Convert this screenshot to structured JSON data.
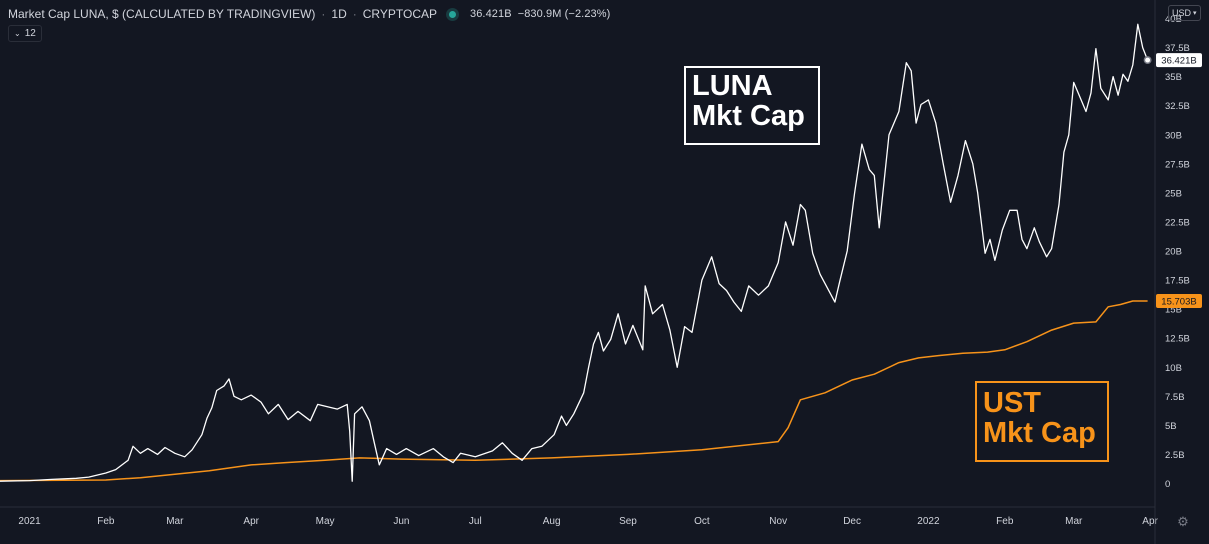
{
  "legend": {
    "symbol": "Market Cap LUNA, $ (CALCULATED BY TRADINGVIEW)",
    "interval": "1D",
    "exchange": "CRYPTOCAP",
    "last_value": "36.421B",
    "change": "−830.9M (−2.23%)",
    "collapse_count": "12"
  },
  "currency": "USD",
  "annotations": {
    "luna_line1": "LUNA",
    "luna_line2": "Mkt Cap",
    "ust_line1": "UST",
    "ust_line2": "Mkt Cap"
  },
  "colors": {
    "background": "#131722",
    "luna_line": "#ffffff",
    "ust_line": "#f7931a",
    "axis_text": "#d1d4dc"
  },
  "chart_data": {
    "type": "line",
    "title": "Market Cap LUNA, $ (CALCULATED BY TRADINGVIEW)",
    "x_ticks": [
      "2021",
      "Feb",
      "Mar",
      "Apr",
      "May",
      "Jun",
      "Jul",
      "Aug",
      "Sep",
      "Oct",
      "Nov",
      "Dec",
      "2022",
      "Feb",
      "Mar",
      "Apr"
    ],
    "y_ticks": [
      0,
      2.5,
      5,
      7.5,
      10,
      12.5,
      15,
      17.5,
      20,
      22.5,
      25,
      27.5,
      30,
      32.5,
      35,
      37.5,
      40
    ],
    "y_tick_labels": [
      "0",
      "2.5B",
      "5B",
      "7.5B",
      "10B",
      "12.5B",
      "15B",
      "17.5B",
      "20B",
      "22.5B",
      "25B",
      "27.5B",
      "30B",
      "32.5B",
      "35B",
      "37.5B",
      "40B"
    ],
    "ylim": [
      0,
      40
    ],
    "xlim": [
      "2020-12-20",
      "2022-04-03"
    ],
    "y_unit": "billion USD",
    "series": [
      {
        "name": "LUNA",
        "color": "#ffffff",
        "last_label": "36.421B",
        "points": [
          [
            "2020-12-20",
            0.2
          ],
          [
            "2021-01-01",
            0.25
          ],
          [
            "2021-01-10",
            0.35
          ],
          [
            "2021-01-20",
            0.45
          ],
          [
            "2021-01-25",
            0.55
          ],
          [
            "2021-02-01",
            0.9
          ],
          [
            "2021-02-05",
            1.2
          ],
          [
            "2021-02-10",
            2.0
          ],
          [
            "2021-02-12",
            3.2
          ],
          [
            "2021-02-15",
            2.6
          ],
          [
            "2021-02-18",
            3.0
          ],
          [
            "2021-02-22",
            2.5
          ],
          [
            "2021-02-25",
            3.1
          ],
          [
            "2021-03-01",
            2.6
          ],
          [
            "2021-03-05",
            2.3
          ],
          [
            "2021-03-08",
            2.9
          ],
          [
            "2021-03-12",
            4.2
          ],
          [
            "2021-03-14",
            5.6
          ],
          [
            "2021-03-16",
            6.5
          ],
          [
            "2021-03-18",
            8.0
          ],
          [
            "2021-03-21",
            8.4
          ],
          [
            "2021-03-23",
            9.0
          ],
          [
            "2021-03-25",
            7.5
          ],
          [
            "2021-03-28",
            7.2
          ],
          [
            "2021-04-01",
            7.6
          ],
          [
            "2021-04-05",
            7.0
          ],
          [
            "2021-04-08",
            6.0
          ],
          [
            "2021-04-12",
            6.8
          ],
          [
            "2021-04-16",
            5.5
          ],
          [
            "2021-04-20",
            6.2
          ],
          [
            "2021-04-25",
            5.4
          ],
          [
            "2021-04-28",
            6.8
          ],
          [
            "2021-05-02",
            6.6
          ],
          [
            "2021-05-06",
            6.4
          ],
          [
            "2021-05-10",
            6.8
          ],
          [
            "2021-05-11",
            4.5
          ],
          [
            "2021-05-12",
            0.2
          ],
          [
            "2021-05-13",
            6.0
          ],
          [
            "2021-05-16",
            6.6
          ],
          [
            "2021-05-19",
            5.4
          ],
          [
            "2021-05-21",
            3.5
          ],
          [
            "2021-05-23",
            1.6
          ],
          [
            "2021-05-26",
            3.0
          ],
          [
            "2021-05-30",
            2.5
          ],
          [
            "2021-06-03",
            3.0
          ],
          [
            "2021-06-08",
            2.4
          ],
          [
            "2021-06-14",
            3.0
          ],
          [
            "2021-06-18",
            2.3
          ],
          [
            "2021-06-22",
            1.8
          ],
          [
            "2021-06-25",
            2.6
          ],
          [
            "2021-07-01",
            2.3
          ],
          [
            "2021-07-08",
            2.8
          ],
          [
            "2021-07-12",
            3.5
          ],
          [
            "2021-07-16",
            2.6
          ],
          [
            "2021-07-20",
            2.0
          ],
          [
            "2021-07-24",
            3.0
          ],
          [
            "2021-07-28",
            3.2
          ],
          [
            "2021-08-02",
            4.2
          ],
          [
            "2021-08-05",
            5.8
          ],
          [
            "2021-08-07",
            5.0
          ],
          [
            "2021-08-10",
            6.0
          ],
          [
            "2021-08-14",
            7.8
          ],
          [
            "2021-08-16",
            10.0
          ],
          [
            "2021-08-18",
            12.0
          ],
          [
            "2021-08-20",
            13.0
          ],
          [
            "2021-08-22",
            11.4
          ],
          [
            "2021-08-25",
            12.4
          ],
          [
            "2021-08-28",
            14.6
          ],
          [
            "2021-08-31",
            12.0
          ],
          [
            "2021-09-03",
            13.6
          ],
          [
            "2021-09-07",
            11.5
          ],
          [
            "2021-09-08",
            17.0
          ],
          [
            "2021-09-11",
            14.6
          ],
          [
            "2021-09-15",
            15.4
          ],
          [
            "2021-09-18",
            13.2
          ],
          [
            "2021-09-21",
            10.0
          ],
          [
            "2021-09-24",
            13.5
          ],
          [
            "2021-09-27",
            13.0
          ],
          [
            "2021-10-01",
            17.5
          ],
          [
            "2021-10-05",
            19.5
          ],
          [
            "2021-10-08",
            17.2
          ],
          [
            "2021-10-11",
            16.6
          ],
          [
            "2021-10-14",
            15.6
          ],
          [
            "2021-10-17",
            14.8
          ],
          [
            "2021-10-20",
            17.0
          ],
          [
            "2021-10-24",
            16.2
          ],
          [
            "2021-10-28",
            17.0
          ],
          [
            "2021-11-01",
            19.0
          ],
          [
            "2021-11-04",
            22.5
          ],
          [
            "2021-11-07",
            20.5
          ],
          [
            "2021-11-10",
            24.0
          ],
          [
            "2021-11-12",
            23.5
          ],
          [
            "2021-11-15",
            19.8
          ],
          [
            "2021-11-18",
            18.0
          ],
          [
            "2021-11-21",
            16.8
          ],
          [
            "2021-11-24",
            15.6
          ],
          [
            "2021-11-26",
            17.4
          ],
          [
            "2021-11-29",
            20.0
          ],
          [
            "2021-12-02",
            25.0
          ],
          [
            "2021-12-05",
            29.2
          ],
          [
            "2021-12-08",
            27.0
          ],
          [
            "2021-12-10",
            26.5
          ],
          [
            "2021-12-12",
            22.0
          ],
          [
            "2021-12-16",
            30.0
          ],
          [
            "2021-12-20",
            32.0
          ],
          [
            "2021-12-23",
            36.2
          ],
          [
            "2021-12-25",
            35.5
          ],
          [
            "2021-12-27",
            31.0
          ],
          [
            "2021-12-29",
            32.6
          ],
          [
            "2022-01-01",
            33.0
          ],
          [
            "2022-01-04",
            31.0
          ],
          [
            "2022-01-07",
            27.5
          ],
          [
            "2022-01-10",
            24.2
          ],
          [
            "2022-01-13",
            26.5
          ],
          [
            "2022-01-16",
            29.5
          ],
          [
            "2022-01-19",
            27.5
          ],
          [
            "2022-01-21",
            25.0
          ],
          [
            "2022-01-24",
            19.8
          ],
          [
            "2022-01-26",
            21.0
          ],
          [
            "2022-01-28",
            19.2
          ],
          [
            "2022-01-31",
            21.8
          ],
          [
            "2022-02-03",
            23.5
          ],
          [
            "2022-02-06",
            23.5
          ],
          [
            "2022-02-08",
            21.0
          ],
          [
            "2022-02-10",
            20.2
          ],
          [
            "2022-02-13",
            22.0
          ],
          [
            "2022-02-15",
            20.8
          ],
          [
            "2022-02-18",
            19.5
          ],
          [
            "2022-02-20",
            20.2
          ],
          [
            "2022-02-23",
            24.0
          ],
          [
            "2022-02-25",
            28.5
          ],
          [
            "2022-02-27",
            30.0
          ],
          [
            "2022-03-01",
            34.5
          ],
          [
            "2022-03-03",
            33.5
          ],
          [
            "2022-03-06",
            32.0
          ],
          [
            "2022-03-08",
            33.6
          ],
          [
            "2022-03-10",
            37.4
          ],
          [
            "2022-03-12",
            34.0
          ],
          [
            "2022-03-15",
            33.0
          ],
          [
            "2022-03-17",
            35.0
          ],
          [
            "2022-03-19",
            33.4
          ],
          [
            "2022-03-21",
            35.2
          ],
          [
            "2022-03-23",
            34.6
          ],
          [
            "2022-03-25",
            36.0
          ],
          [
            "2022-03-27",
            39.5
          ],
          [
            "2022-03-29",
            37.5
          ],
          [
            "2022-03-31",
            36.421
          ]
        ]
      },
      {
        "name": "UST",
        "color": "#f7931a",
        "last_label": "15.703B",
        "points": [
          [
            "2020-12-20",
            0.25
          ],
          [
            "2021-02-01",
            0.3
          ],
          [
            "2021-02-15",
            0.5
          ],
          [
            "2021-03-01",
            0.8
          ],
          [
            "2021-03-15",
            1.1
          ],
          [
            "2021-04-01",
            1.6
          ],
          [
            "2021-04-15",
            1.8
          ],
          [
            "2021-05-01",
            2.0
          ],
          [
            "2021-05-15",
            2.2
          ],
          [
            "2021-06-01",
            2.1
          ],
          [
            "2021-07-01",
            2.0
          ],
          [
            "2021-08-01",
            2.2
          ],
          [
            "2021-09-01",
            2.5
          ],
          [
            "2021-10-01",
            2.9
          ],
          [
            "2021-11-01",
            3.6
          ],
          [
            "2021-11-05",
            4.8
          ],
          [
            "2021-11-10",
            7.2
          ],
          [
            "2021-11-20",
            7.8
          ],
          [
            "2021-12-01",
            8.9
          ],
          [
            "2021-12-10",
            9.4
          ],
          [
            "2021-12-20",
            10.4
          ],
          [
            "2021-12-28",
            10.8
          ],
          [
            "2022-01-05",
            11.0
          ],
          [
            "2022-01-15",
            11.2
          ],
          [
            "2022-01-25",
            11.3
          ],
          [
            "2022-02-01",
            11.5
          ],
          [
            "2022-02-10",
            12.2
          ],
          [
            "2022-02-20",
            13.2
          ],
          [
            "2022-03-01",
            13.8
          ],
          [
            "2022-03-10",
            13.9
          ],
          [
            "2022-03-15",
            15.2
          ],
          [
            "2022-03-20",
            15.4
          ],
          [
            "2022-03-25",
            15.703
          ],
          [
            "2022-03-31",
            15.703
          ]
        ]
      }
    ],
    "grid": false,
    "legend": "top-left"
  }
}
